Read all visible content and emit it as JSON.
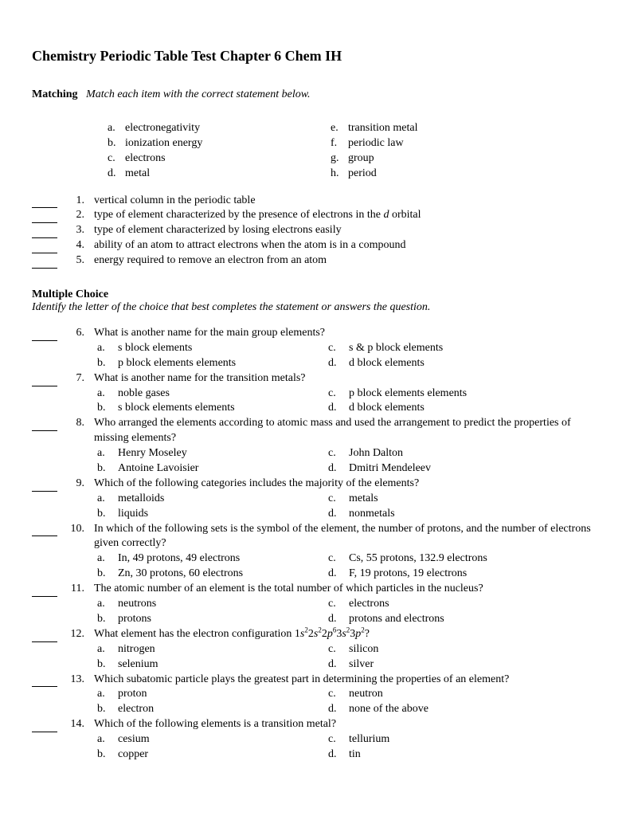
{
  "title": "Chemistry Periodic Table Test Chapter 6 Chem IH",
  "matching": {
    "label": "Matching",
    "instruction": "Match each item with the correct statement below.",
    "terms_left": [
      {
        "letter": "a.",
        "text": "electronegativity"
      },
      {
        "letter": "b.",
        "text": "ionization energy"
      },
      {
        "letter": "c.",
        "text": "electrons"
      },
      {
        "letter": "d.",
        "text": "metal"
      }
    ],
    "terms_right": [
      {
        "letter": "e.",
        "text": "transition metal"
      },
      {
        "letter": "f.",
        "text": "periodic law"
      },
      {
        "letter": "g.",
        "text": "group"
      },
      {
        "letter": "h.",
        "text": "period"
      }
    ],
    "questions": [
      {
        "n": "1.",
        "text": "vertical column in the periodic table"
      },
      {
        "n": "2.",
        "text_pre": "type of element characterized by the presence of electrons in the ",
        "text_italic": "d",
        "text_post": " orbital"
      },
      {
        "n": "3.",
        "text": "type of element characterized by losing electrons easily"
      },
      {
        "n": "4.",
        "text": "ability of an atom to attract electrons when the atom is in a compound"
      },
      {
        "n": "5.",
        "text": "energy required to remove an electron from an atom"
      }
    ]
  },
  "mc": {
    "label": "Multiple Choice",
    "instruction": "Identify the letter of the choice that best completes the statement or answers the question.",
    "questions": [
      {
        "n": "6.",
        "stem": "What is another name for the main group elements?",
        "left": [
          {
            "l": "a.",
            "t": "s block elements"
          },
          {
            "l": "b.",
            "t": "p block elements elements"
          }
        ],
        "right": [
          {
            "l": "c.",
            "t": "s & p block elements"
          },
          {
            "l": "d.",
            "t": "d block elements"
          }
        ]
      },
      {
        "n": "7.",
        "stem": "What is another name for the transition metals?",
        "left": [
          {
            "l": "a.",
            "t": "noble gases"
          },
          {
            "l": "b.",
            "t": "s block elements elements"
          }
        ],
        "right": [
          {
            "l": "c.",
            "t": "p block elements elements"
          },
          {
            "l": "d.",
            "t": "d block elements"
          }
        ]
      },
      {
        "n": "8.",
        "stem": "Who arranged the elements according to atomic mass and used the arrangement to predict the properties of missing elements?",
        "left": [
          {
            "l": "a.",
            "t": "Henry Moseley"
          },
          {
            "l": "b.",
            "t": "Antoine Lavoisier"
          }
        ],
        "right": [
          {
            "l": "c.",
            "t": "John Dalton"
          },
          {
            "l": "d.",
            "t": "Dmitri Mendeleev"
          }
        ]
      },
      {
        "n": "9.",
        "stem": "Which of the following categories includes the majority of the elements?",
        "left": [
          {
            "l": "a.",
            "t": "metalloids"
          },
          {
            "l": "b.",
            "t": "liquids"
          }
        ],
        "right": [
          {
            "l": "c.",
            "t": "metals"
          },
          {
            "l": "d.",
            "t": "nonmetals"
          }
        ]
      },
      {
        "n": "10.",
        "stem": "In which of the following sets is the symbol of the element, the number of protons, and the number of electrons given correctly?",
        "left": [
          {
            "l": "a.",
            "t": "In, 49 protons, 49 electrons"
          },
          {
            "l": "b.",
            "t": "Zn, 30 protons, 60 electrons"
          }
        ],
        "right": [
          {
            "l": "c.",
            "t": "Cs, 55 protons, 132.9 electrons"
          },
          {
            "l": "d.",
            "t": "F, 19 protons, 19 electrons"
          }
        ]
      },
      {
        "n": "11.",
        "stem": "The atomic number of an element is the total number of which particles in the nucleus?",
        "left": [
          {
            "l": "a.",
            "t": "neutrons"
          },
          {
            "l": "b.",
            "t": "protons"
          }
        ],
        "right": [
          {
            "l": "c.",
            "t": "electrons"
          },
          {
            "l": "d.",
            "t": "protons and electrons"
          }
        ]
      },
      {
        "n": "12.",
        "stem_html": "What element has the electron configuration 1<i>s</i><sup>2</sup>2<i>s</i><sup>2</sup>2<i>p</i><sup>6</sup>3<i>s</i><sup>2</sup>3<i>p</i><sup>2</sup>?",
        "left": [
          {
            "l": "a.",
            "t": "nitrogen"
          },
          {
            "l": "b.",
            "t": "selenium"
          }
        ],
        "right": [
          {
            "l": "c.",
            "t": "silicon"
          },
          {
            "l": "d.",
            "t": "silver"
          }
        ]
      },
      {
        "n": "13.",
        "stem": "Which subatomic particle plays the greatest part in determining the properties of an element?",
        "left": [
          {
            "l": "a.",
            "t": "proton"
          },
          {
            "l": "b.",
            "t": "electron"
          }
        ],
        "right": [
          {
            "l": "c.",
            "t": "neutron"
          },
          {
            "l": "d.",
            "t": "none of the above"
          }
        ]
      },
      {
        "n": "14.",
        "stem": "Which of the following elements is a transition metal?",
        "left": [
          {
            "l": "a.",
            "t": "cesium"
          },
          {
            "l": "b.",
            "t": "copper"
          }
        ],
        "right": [
          {
            "l": "c.",
            "t": "tellurium"
          },
          {
            "l": "d.",
            "t": "tin"
          }
        ]
      }
    ]
  }
}
